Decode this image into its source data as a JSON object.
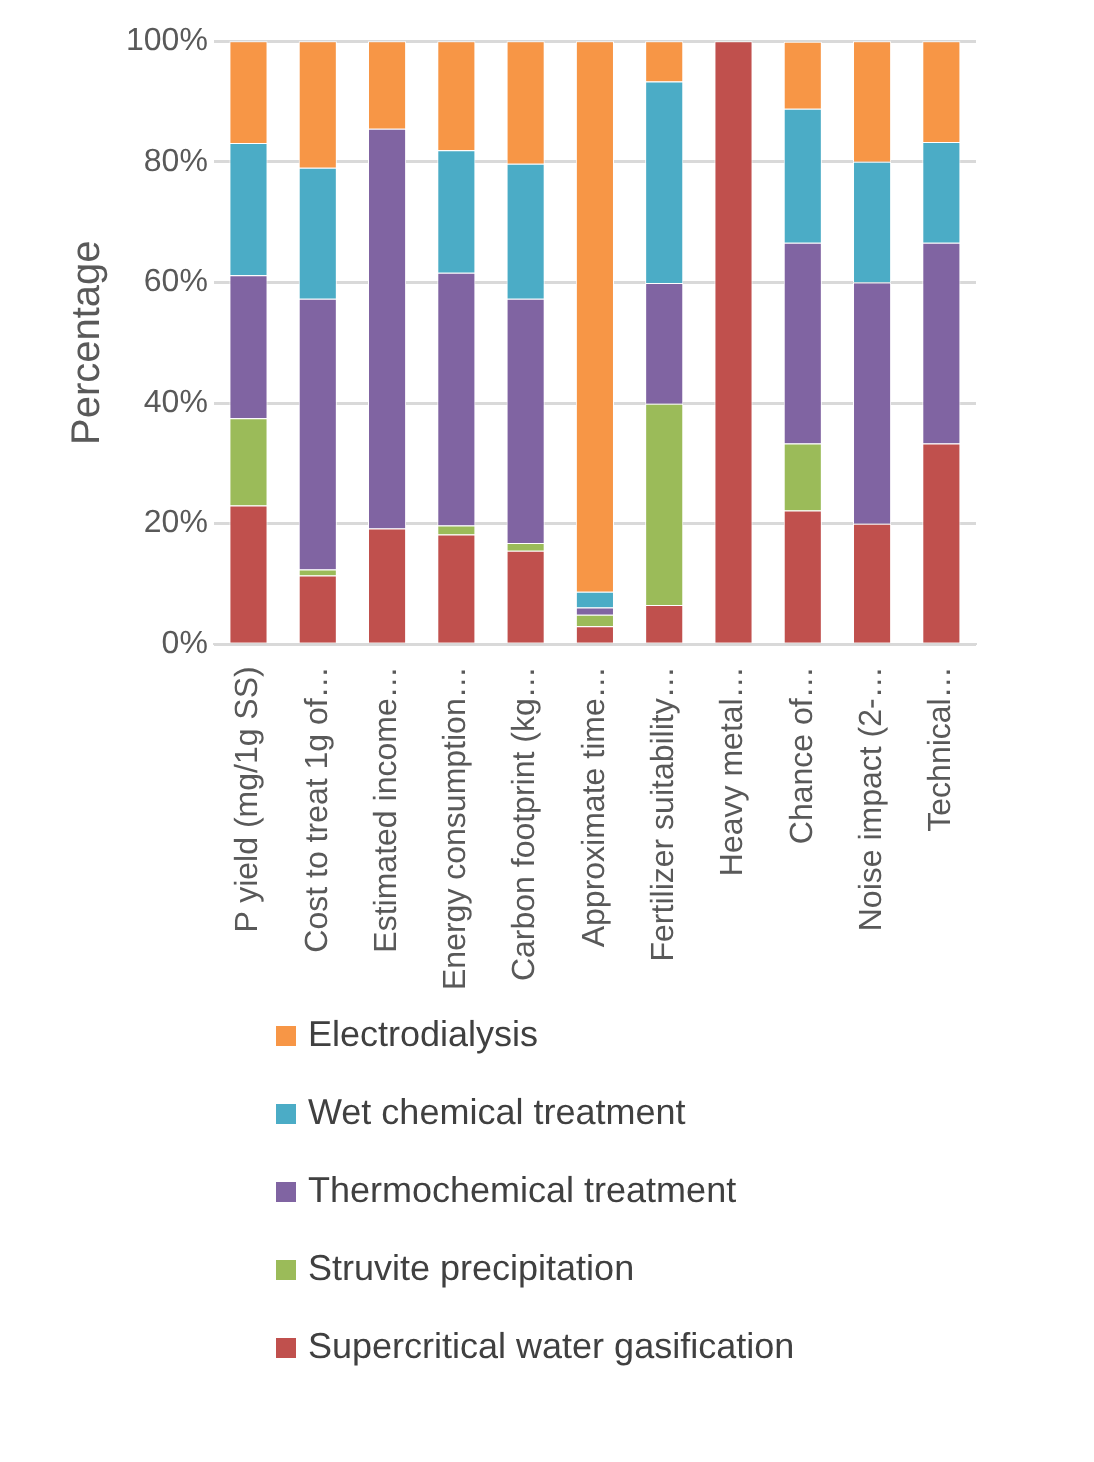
{
  "chart_data": {
    "type": "bar",
    "stacked": true,
    "ylabel": "Percentage",
    "categories": [
      "P yield (mg/1g SS)",
      "Cost to treat 1g of…",
      "Estimated income…",
      "Energy consumption…",
      "Carbon footprint (kg…",
      "Approximate time…",
      "Fertilizer suitability…",
      "Heavy metal…",
      "Chance of…",
      "Noise impact (2-…",
      "Technical…"
    ],
    "series": [
      {
        "name": "Supercritical water gasification",
        "color": "#c0504d",
        "values": [
          23,
          11.4,
          19.2,
          18.2,
          15.5,
          3,
          6.5,
          100,
          22.2,
          20,
          33.3
        ]
      },
      {
        "name": "Struvite precipitation",
        "color": "#9bbb59",
        "values": [
          14.5,
          1,
          0,
          1.5,
          1.3,
          1.9,
          33.4,
          0,
          11.1,
          0,
          0
        ]
      },
      {
        "name": "Thermochemical treatment",
        "color": "#8064a2",
        "values": [
          23.7,
          44.9,
          66.3,
          41.9,
          40.5,
          1.2,
          20,
          0,
          33.3,
          40,
          33.3
        ]
      },
      {
        "name": "Wet chemical treatment",
        "color": "#4bacc6",
        "values": [
          21.9,
          21.7,
          0,
          20.3,
          22.4,
          2.6,
          33.4,
          0,
          22.2,
          20,
          16.7
        ]
      },
      {
        "name": "Electrodialysis",
        "color": "#f79646",
        "values": [
          16.9,
          21,
          14.5,
          18.1,
          20.3,
          91.3,
          6.7,
          0,
          11.1,
          20,
          16.7
        ]
      }
    ],
    "ylim": [
      0,
      100
    ],
    "yticks": [
      {
        "value": 0,
        "label": "0%"
      },
      {
        "value": 20,
        "label": "20%"
      },
      {
        "value": 40,
        "label": "40%"
      },
      {
        "value": 60,
        "label": "60%"
      },
      {
        "value": 80,
        "label": "80%"
      },
      {
        "value": 100,
        "label": "100%"
      }
    ],
    "grid": "y",
    "legend": "bottom"
  }
}
